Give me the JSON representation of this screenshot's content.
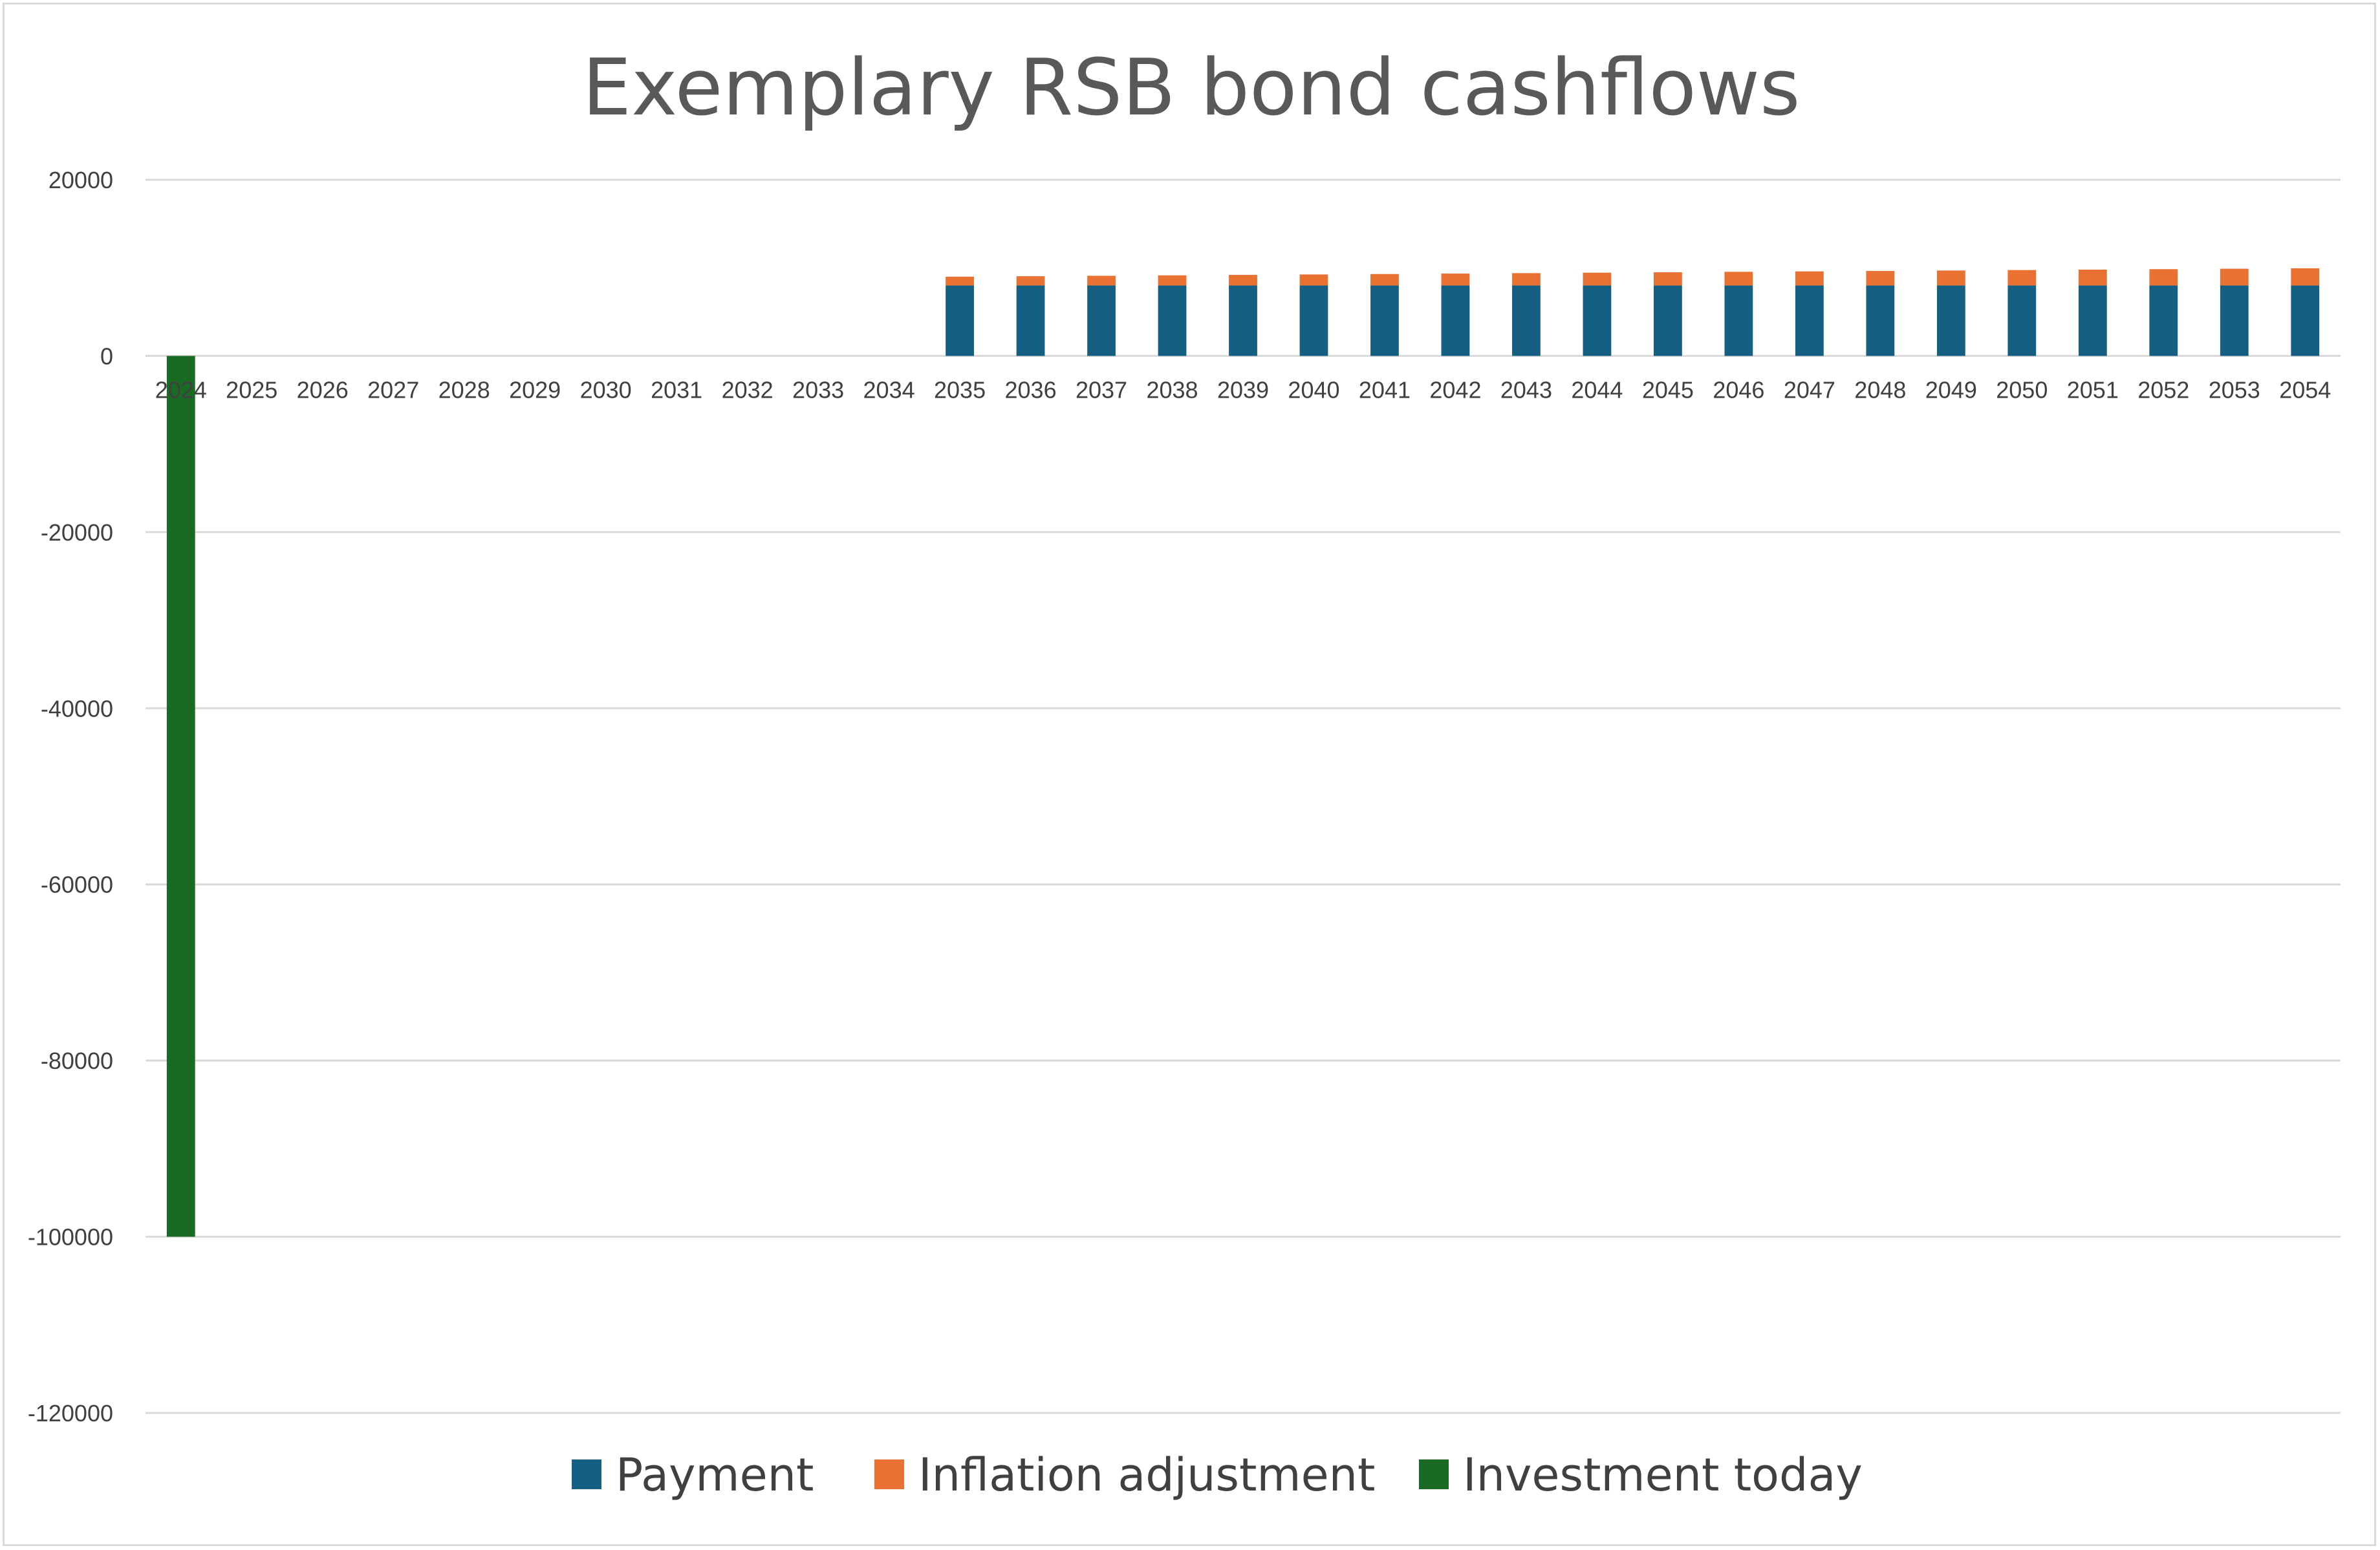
{
  "chart_data": {
    "type": "bar",
    "stacked": true,
    "title": "Exemplary RSB bond cashflows",
    "xlabel": "",
    "ylabel": "",
    "ylim": [
      -120000,
      20000
    ],
    "yticks": [
      20000,
      0,
      -20000,
      -40000,
      -60000,
      -80000,
      -100000,
      -120000
    ],
    "grid": true,
    "legend_position": "bottom",
    "categories": [
      "2024",
      "2025",
      "2026",
      "2027",
      "2028",
      "2029",
      "2030",
      "2031",
      "2032",
      "2033",
      "2034",
      "2035",
      "2036",
      "2037",
      "2038",
      "2039",
      "2040",
      "2041",
      "2042",
      "2043",
      "2044",
      "2045",
      "2046",
      "2047",
      "2048",
      "2049",
      "2050",
      "2051",
      "2052",
      "2053",
      "2054"
    ],
    "series": [
      {
        "name": "Payment",
        "color": "#156082",
        "values": [
          0,
          0,
          0,
          0,
          0,
          0,
          0,
          0,
          0,
          0,
          0,
          8000,
          8000,
          8000,
          8000,
          8000,
          8000,
          8000,
          8000,
          8000,
          8000,
          8000,
          8000,
          8000,
          8000,
          8000,
          8000,
          8000,
          8000,
          8000,
          8000
        ]
      },
      {
        "name": "Inflation adjustment",
        "color": "#E97132",
        "values": [
          0,
          0,
          0,
          0,
          0,
          0,
          0,
          0,
          0,
          0,
          0,
          1000,
          1050,
          1100,
          1150,
          1200,
          1250,
          1300,
          1350,
          1400,
          1450,
          1500,
          1550,
          1600,
          1650,
          1700,
          1750,
          1800,
          1850,
          1900,
          1950
        ]
      },
      {
        "name": "Investment today",
        "color": "#196B24",
        "values": [
          -100000,
          0,
          0,
          0,
          0,
          0,
          0,
          0,
          0,
          0,
          0,
          0,
          0,
          0,
          0,
          0,
          0,
          0,
          0,
          0,
          0,
          0,
          0,
          0,
          0,
          0,
          0,
          0,
          0,
          0,
          0
        ]
      }
    ]
  }
}
